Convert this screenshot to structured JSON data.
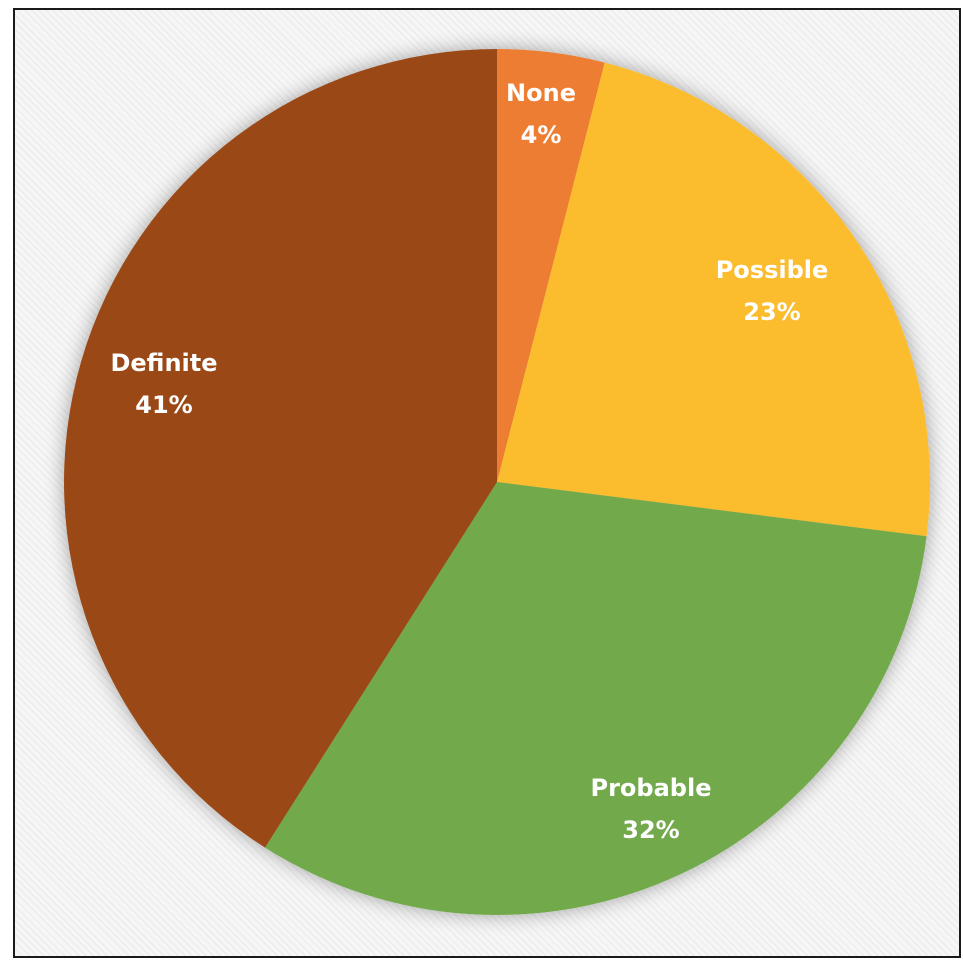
{
  "chart_data": {
    "type": "pie",
    "title": "",
    "slices": [
      {
        "name": "None",
        "value": 4,
        "label": "4%",
        "color": "#ED7D31"
      },
      {
        "name": "Possible",
        "value": 23,
        "label": "23%",
        "color": "#FBBC2E"
      },
      {
        "name": "Probable",
        "value": 32,
        "label": "32%",
        "color": "#72AA4C"
      },
      {
        "name": "Definite",
        "value": 41,
        "label": "41%",
        "color": "#9A4819"
      }
    ],
    "start_angle_deg": 0,
    "direction": "clockwise",
    "legend": "none",
    "data_labels": "inside"
  }
}
